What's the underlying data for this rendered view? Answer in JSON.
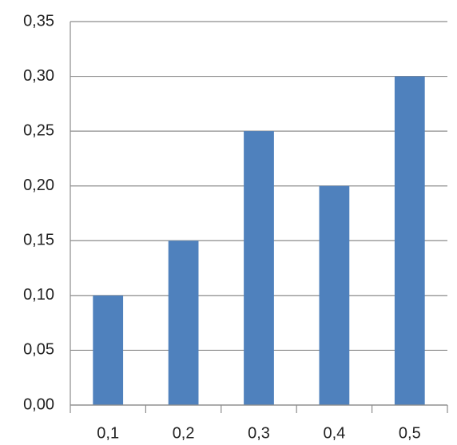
{
  "chart_data": {
    "type": "bar",
    "categories": [
      "0,1",
      "0,2",
      "0,3",
      "0,4",
      "0,5"
    ],
    "values": [
      0.1,
      0.15,
      0.25,
      0.2,
      0.3
    ],
    "color": "#4f81bd",
    "ylim": [
      0,
      0.35
    ],
    "yticks": [
      {
        "value": 0,
        "label": "0,00"
      },
      {
        "value": 0.05,
        "label": "0,05"
      },
      {
        "value": 0.1,
        "label": "0,10"
      },
      {
        "value": 0.15,
        "label": "0,15"
      },
      {
        "value": 0.2,
        "label": "0,20"
      },
      {
        "value": 0.25,
        "label": "0,25"
      },
      {
        "value": 0.3,
        "label": "0,30"
      },
      {
        "value": 0.35,
        "label": "0,35"
      }
    ],
    "grid": true
  }
}
